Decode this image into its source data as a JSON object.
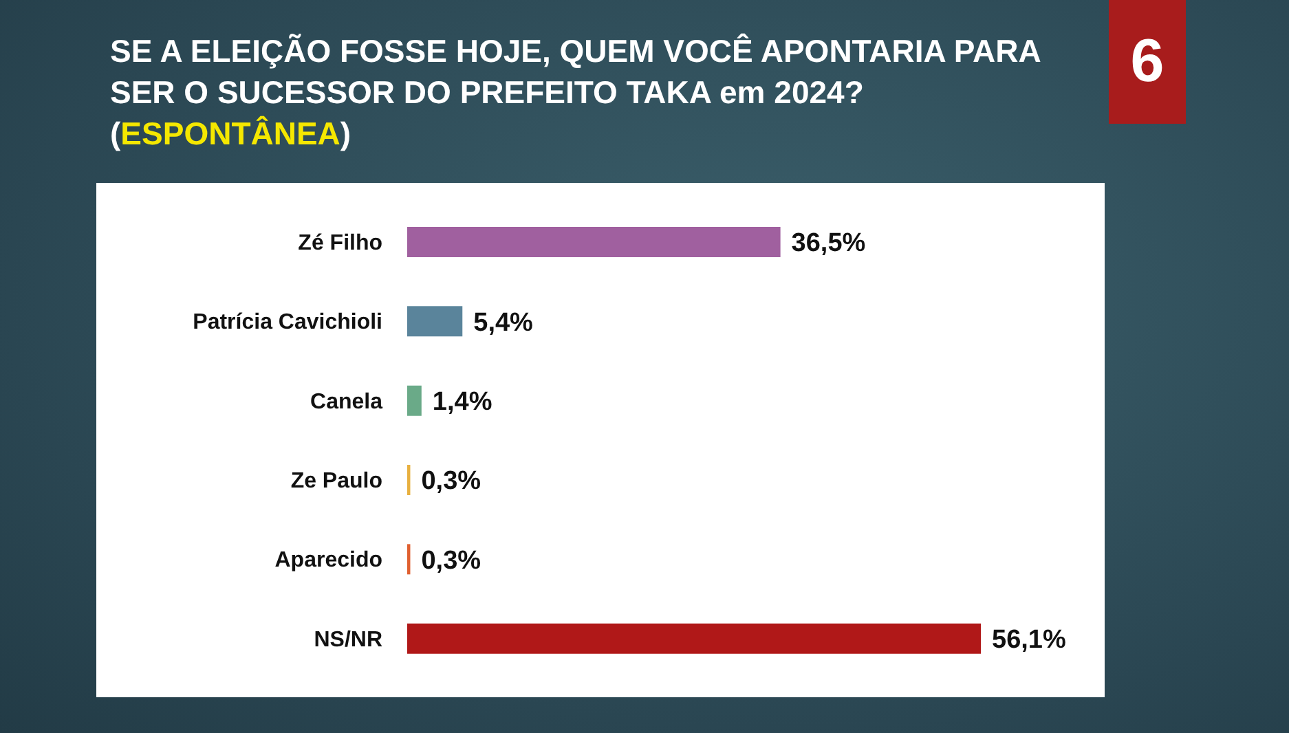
{
  "chart_data": {
    "type": "bar",
    "orientation": "horizontal",
    "title": "SE A ELEIÇÃO FOSSE HOJE, QUEM VOCÊ APONTARIA PARA SER O SUCESSOR DO PREFEITO TAKA em 2024?",
    "subtitle": "(ESPONTÂNEA)",
    "annotations": [
      "6"
    ],
    "categories": [
      "Zé Filho",
      "Patrícia Cavichioli",
      "Canela",
      "Ze Paulo",
      "Aparecido",
      "NS/NR"
    ],
    "values": [
      36.5,
      5.4,
      1.4,
      0.3,
      0.3,
      56.1
    ],
    "colors": [
      "#a0609f",
      "#5a849b",
      "#6aaa88",
      "#e8b040",
      "#e06030",
      "#b01818"
    ],
    "value_labels": [
      "36,5%",
      "5,4%",
      "1,4%",
      "0,3%",
      "0,3%",
      "56,1%"
    ],
    "tick_labels": false,
    "grid": false,
    "legend": false
  }
}
